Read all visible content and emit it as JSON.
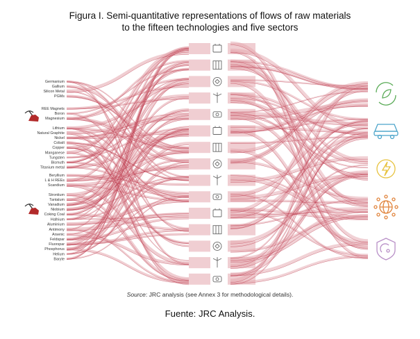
{
  "title": {
    "line1": "Figura I. Semi-quantitative representations of flows of raw materials",
    "line2": "to the fifteen technologies and five sectors"
  },
  "materials": [
    "Germanium",
    "Gallium",
    "Silicon Metal",
    "PGMs",
    "REE Magnets",
    "Boron",
    "Magnesium",
    "Lithium",
    "Natural Graphite",
    "Nickel",
    "Cobalt",
    "Copper",
    "Manganese",
    "Tungsten",
    "Bismuth",
    "Titanium metal",
    "Beryllium",
    "L & H REEs",
    "Scandium",
    "Strontium",
    "Tantalum",
    "Vanadium",
    "Niobium",
    "Coking Coal",
    "Hafnium",
    "Aluminium",
    "Antimony",
    "Arsenic",
    "Feldspar",
    "Fluorspar",
    "Phosphorus",
    "Helium",
    "Baryte"
  ],
  "technology_icons": [
    "battery-icon",
    "fuel-cell-icon",
    "electrolyser-icon",
    "wind-turbine-icon",
    "motor-icon",
    "solar-panel-icon",
    "heat-pump-icon",
    "3d-printing-icon",
    "robotics-icon",
    "cloud-data-icon",
    "smartphone-icon",
    "server-icon",
    "drone-icon",
    "robot-arm-icon",
    "satellite-icon"
  ],
  "sector_icons": [
    "renewable-energy-icon",
    "electric-mobility-icon",
    "energy-intensive-industry-icon",
    "digital-icon",
    "defence-space-icon"
  ],
  "colors": {
    "flow": "#e3a5ad",
    "flow_line": "#b21f34",
    "icon": "#666666",
    "mine": "#b22a2a",
    "renewable": "#5aab57",
    "mobility": "#4aa3c9",
    "energy": "#e7c23d",
    "digital": "#e1843c",
    "defence": "#b88fc7"
  },
  "source": {
    "italic": "Source",
    "rest": ": JRC analysis (see Annex 3 for methodological details)."
  },
  "footer": "Fuente: JRC Analysis."
}
